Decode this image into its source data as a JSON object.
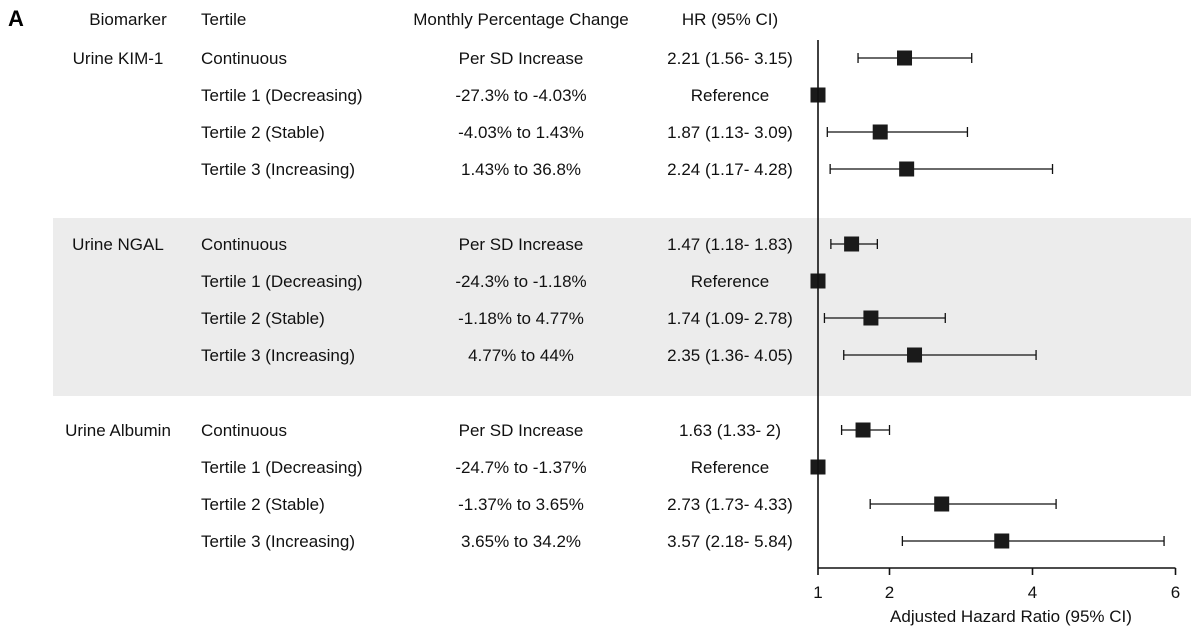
{
  "panel_label": "A",
  "headers": {
    "biomarker": "Biomarker",
    "tertile": "Tertile",
    "change": "Monthly Percentage Change",
    "hr": "HR (95% CI)"
  },
  "chart_data": {
    "type": "forest",
    "xlabel": "Adjusted Hazard Ratio (95% CI)",
    "xlim": [
      1,
      6
    ],
    "xticks": [
      1,
      2,
      4,
      6
    ],
    "reference_line": 1,
    "groups": [
      {
        "name": "Urine KIM-1",
        "shaded": false,
        "rows": [
          {
            "tertile": "Continuous",
            "change": "Per SD Increase",
            "hr_text": "2.21 (1.56- 3.15)",
            "hr": 2.21,
            "lo": 1.56,
            "hi": 3.15
          },
          {
            "tertile": "Tertile 1 (Decreasing)",
            "change": "-27.3% to -4.03%",
            "hr_text": "Reference",
            "hr": 1,
            "lo": null,
            "hi": null
          },
          {
            "tertile": "Tertile 2 (Stable)",
            "change": "-4.03% to 1.43%",
            "hr_text": "1.87 (1.13- 3.09)",
            "hr": 1.87,
            "lo": 1.13,
            "hi": 3.09
          },
          {
            "tertile": "Tertile 3 (Increasing)",
            "change": "1.43% to 36.8%",
            "hr_text": "2.24 (1.17- 4.28)",
            "hr": 2.24,
            "lo": 1.17,
            "hi": 4.28
          }
        ]
      },
      {
        "name": "Urine NGAL",
        "shaded": true,
        "rows": [
          {
            "tertile": "Continuous",
            "change": "Per SD Increase",
            "hr_text": "1.47 (1.18- 1.83)",
            "hr": 1.47,
            "lo": 1.18,
            "hi": 1.83
          },
          {
            "tertile": "Tertile 1 (Decreasing)",
            "change": "-24.3% to -1.18%",
            "hr_text": "Reference",
            "hr": 1,
            "lo": null,
            "hi": null
          },
          {
            "tertile": "Tertile 2 (Stable)",
            "change": "-1.18% to 4.77%",
            "hr_text": "1.74 (1.09- 2.78)",
            "hr": 1.74,
            "lo": 1.09,
            "hi": 2.78
          },
          {
            "tertile": "Tertile 3 (Increasing)",
            "change": "4.77% to 44%",
            "hr_text": "2.35 (1.36- 4.05)",
            "hr": 2.35,
            "lo": 1.36,
            "hi": 4.05
          }
        ]
      },
      {
        "name": "Urine Albumin",
        "shaded": false,
        "rows": [
          {
            "tertile": "Continuous",
            "change": "Per SD Increase",
            "hr_text": "1.63 (1.33- 2)",
            "hr": 1.63,
            "lo": 1.33,
            "hi": 2
          },
          {
            "tertile": "Tertile 1 (Decreasing)",
            "change": "-24.7% to -1.37%",
            "hr_text": "Reference",
            "hr": 1,
            "lo": null,
            "hi": null
          },
          {
            "tertile": "Tertile 2 (Stable)",
            "change": "-1.37% to 3.65%",
            "hr_text": "2.73 (1.73- 4.33)",
            "hr": 2.73,
            "lo": 1.73,
            "hi": 4.33
          },
          {
            "tertile": "Tertile 3 (Increasing)",
            "change": "3.65% to 34.2%",
            "hr_text": "3.57 (2.18- 5.84)",
            "hr": 3.57,
            "lo": 2.18,
            "hi": 5.84
          }
        ]
      }
    ]
  },
  "colors": {
    "shade": "#ececec",
    "marker": "#1a1a1a",
    "line": "#111111"
  }
}
